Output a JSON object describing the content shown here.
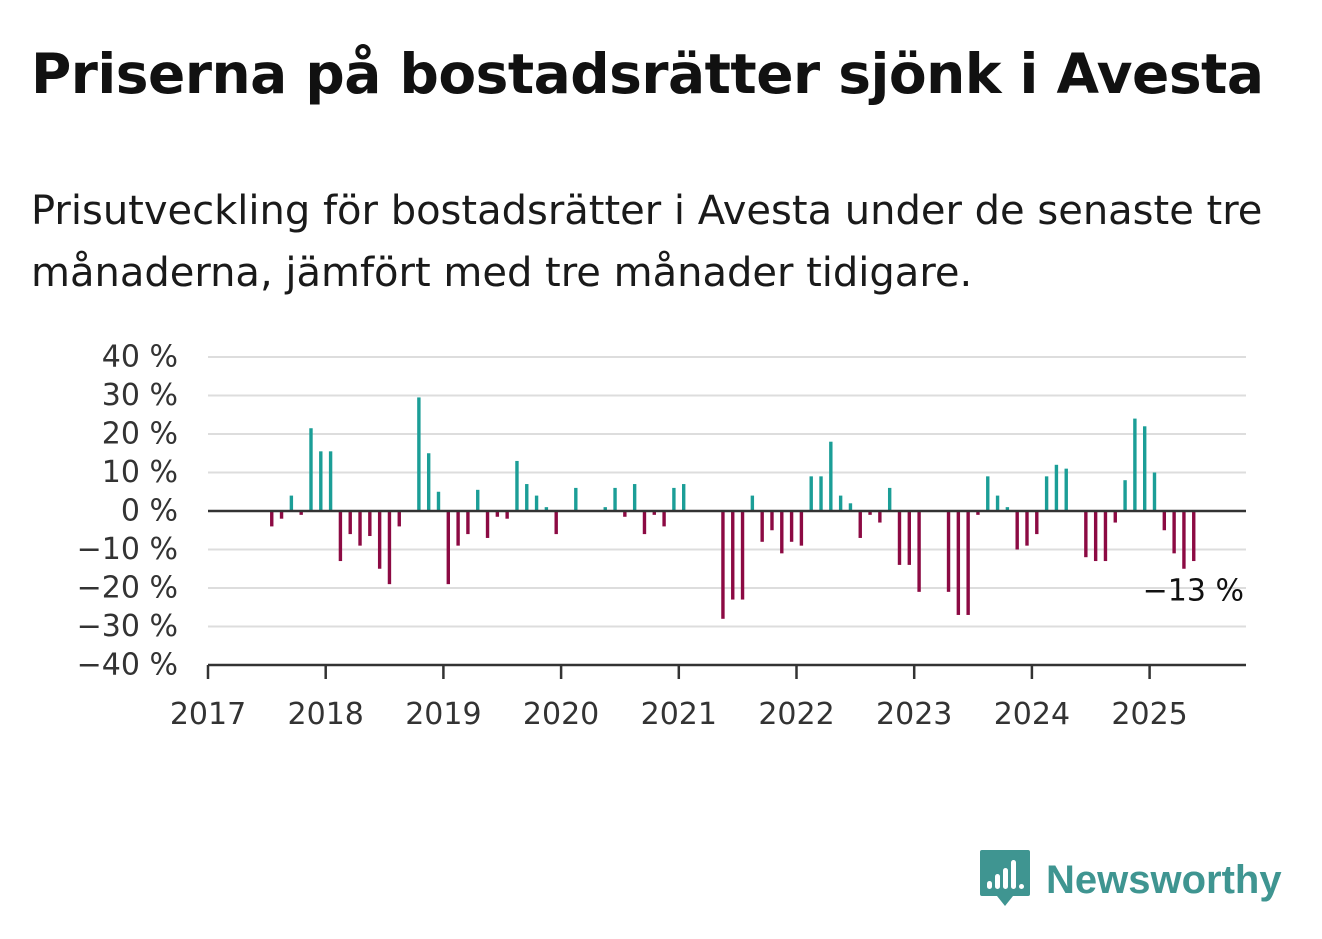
{
  "title": "Priserna på bostadsrätter sjönk i Avesta",
  "subtitle": "Prisutveckling för bostadsrätter i Avesta under de senaste tre månaderna, jämfört med tre månader tidigare.",
  "brand": {
    "name": "Newsworthy",
    "logo_icon": "bar-chart-speech-bubble-icon",
    "color": "#3f9591"
  },
  "colors": {
    "positive": "#1b9e97",
    "negative": "#8c0a43",
    "grid": "#dddddd",
    "axis": "#333333"
  },
  "chart_data": {
    "type": "bar",
    "x_ticks": [
      "2017",
      "2018",
      "2019",
      "2020",
      "2021",
      "2022",
      "2023",
      "2024",
      "2025"
    ],
    "y_ticks": [
      "40 %",
      "30 %",
      "20 %",
      "10 %",
      "0 %",
      "−10 %",
      "−20 %",
      "−30 %",
      "−40 %"
    ],
    "ylim": [
      -40,
      40
    ],
    "xlim": [
      "2017-01",
      "2025-10"
    ],
    "grid": true,
    "annotation": {
      "text": "−13 %",
      "date": "2025-06"
    },
    "series": [
      {
        "points": [
          [
            "2017-07",
            -4
          ],
          [
            "2017-08",
            -2
          ],
          [
            "2017-09",
            4
          ],
          [
            "2017-10",
            -1
          ],
          [
            "2017-11",
            21.5
          ],
          [
            "2017-12",
            15.5
          ],
          [
            "2018-01",
            15.5
          ],
          [
            "2018-02",
            -13
          ],
          [
            "2018-03",
            -6
          ],
          [
            "2018-04",
            -9
          ],
          [
            "2018-05",
            -6.5
          ],
          [
            "2018-06",
            -15
          ],
          [
            "2018-07",
            -19
          ],
          [
            "2018-08",
            -4
          ],
          [
            "2018-10",
            29.5
          ],
          [
            "2018-11",
            15
          ],
          [
            "2018-12",
            5
          ],
          [
            "2019-01",
            -19
          ],
          [
            "2019-02",
            -9
          ],
          [
            "2019-03",
            -6
          ],
          [
            "2019-04",
            5.5
          ],
          [
            "2019-05",
            -7
          ],
          [
            "2019-06",
            -1.5
          ],
          [
            "2019-07",
            -2
          ],
          [
            "2019-08",
            13
          ],
          [
            "2019-09",
            7
          ],
          [
            "2019-10",
            4
          ],
          [
            "2019-11",
            1
          ],
          [
            "2019-12",
            -6
          ],
          [
            "2020-02",
            6
          ],
          [
            "2020-05",
            1
          ],
          [
            "2020-06",
            6
          ],
          [
            "2020-07",
            -1.5
          ],
          [
            "2020-08",
            7
          ],
          [
            "2020-09",
            -6
          ],
          [
            "2020-10",
            -1
          ],
          [
            "2020-11",
            -4
          ],
          [
            "2020-12",
            6
          ],
          [
            "2021-01",
            7
          ],
          [
            "2021-05",
            -28
          ],
          [
            "2021-06",
            -23
          ],
          [
            "2021-07",
            -23
          ],
          [
            "2021-08",
            4
          ],
          [
            "2021-09",
            -8
          ],
          [
            "2021-10",
            -5
          ],
          [
            "2021-11",
            -11
          ],
          [
            "2021-12",
            -8
          ],
          [
            "2022-01",
            -9
          ],
          [
            "2022-02",
            9
          ],
          [
            "2022-03",
            9
          ],
          [
            "2022-04",
            18
          ],
          [
            "2022-05",
            4
          ],
          [
            "2022-06",
            2
          ],
          [
            "2022-07",
            -7
          ],
          [
            "2022-08",
            -1
          ],
          [
            "2022-09",
            -3
          ],
          [
            "2022-10",
            6
          ],
          [
            "2022-11",
            -14
          ],
          [
            "2022-12",
            -14
          ],
          [
            "2023-01",
            -21
          ],
          [
            "2023-04",
            -21
          ],
          [
            "2023-05",
            -27
          ],
          [
            "2023-06",
            -27
          ],
          [
            "2023-07",
            -1
          ],
          [
            "2023-08",
            9
          ],
          [
            "2023-09",
            4
          ],
          [
            "2023-10",
            1
          ],
          [
            "2023-11",
            -10
          ],
          [
            "2023-12",
            -9
          ],
          [
            "2024-01",
            -6
          ],
          [
            "2024-02",
            9
          ],
          [
            "2024-03",
            12
          ],
          [
            "2024-04",
            11
          ],
          [
            "2024-06",
            -12
          ],
          [
            "2024-07",
            -13
          ],
          [
            "2024-08",
            -13
          ],
          [
            "2024-09",
            -3
          ],
          [
            "2024-10",
            8
          ],
          [
            "2024-11",
            24
          ],
          [
            "2024-12",
            22
          ],
          [
            "2025-01",
            10
          ],
          [
            "2025-02",
            -5
          ],
          [
            "2025-03",
            -11
          ],
          [
            "2025-04",
            -15
          ],
          [
            "2025-05",
            -13
          ]
        ]
      }
    ]
  }
}
